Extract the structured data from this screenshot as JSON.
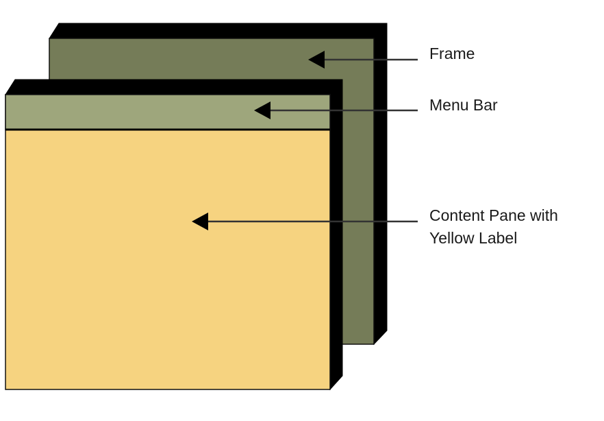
{
  "labels": {
    "frame": "Frame",
    "menu_bar": "Menu Bar",
    "content_pane_line1": "Content Pane with",
    "content_pane_line2": "Yellow Label"
  },
  "colors": {
    "frame_face": "#757C58",
    "menu_bar_face": "#9EA67C",
    "content_pane_face": "#F6D380",
    "edge_shadow": "#000000",
    "outline": "#111111",
    "leader_line": "#333333",
    "arrowhead": "#000000",
    "background": "#FFFFFF"
  },
  "icons": {
    "pointer": "arrowhead-left"
  }
}
